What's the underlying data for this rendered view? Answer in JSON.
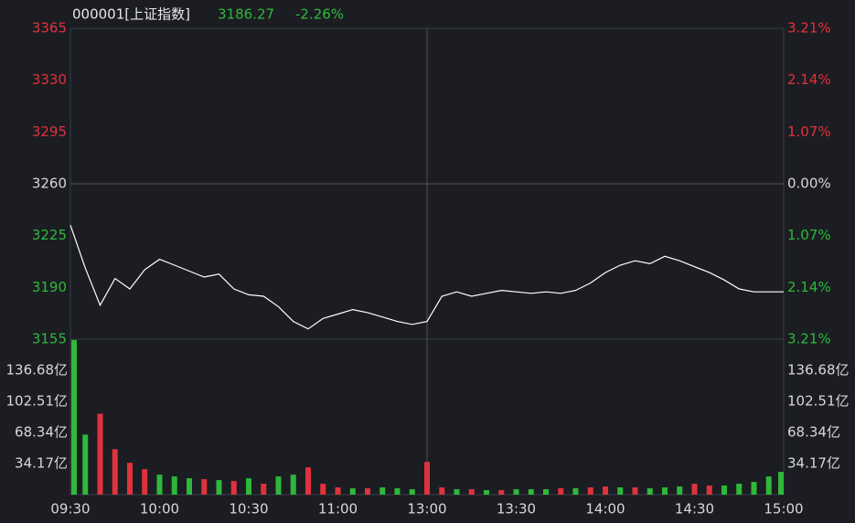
{
  "chart_data": [
    {
      "type": "line",
      "title": "000001[上证指数]",
      "last": 3186.27,
      "change": {
        "value": -2.26,
        "label": "-2.26%"
      },
      "color": "#ffffff",
      "x": [
        0,
        5,
        10,
        15,
        20,
        25,
        30,
        35,
        40,
        45,
        50,
        55,
        60,
        65,
        70,
        75,
        80,
        85,
        90,
        95,
        100,
        105,
        110,
        115,
        120,
        125,
        130,
        135,
        140,
        145,
        150,
        155,
        160,
        165,
        170,
        175,
        180,
        185,
        190,
        195,
        200,
        205,
        210,
        215,
        220,
        225,
        230,
        235,
        240
      ],
      "values": [
        3232,
        3203,
        3178,
        3196,
        3189,
        3202,
        3209,
        3205,
        3201,
        3197,
        3199,
        3189,
        3185,
        3184,
        3177,
        3167,
        3162,
        3169,
        3172,
        3175,
        3173,
        3170,
        3167,
        3165,
        3167,
        3184,
        3187,
        3184,
        3186,
        3188,
        3187,
        3186,
        3187,
        3186,
        3188,
        3193,
        3200,
        3205,
        3208,
        3206,
        3211,
        3208,
        3204,
        3200,
        3195,
        3189,
        3187,
        3187,
        3187
      ],
      "xlim": [
        0,
        240
      ],
      "ylim": [
        3155,
        3365
      ],
      "yticks": [
        3155,
        3190,
        3225,
        3260,
        3295,
        3330,
        3365
      ],
      "y2lim": [
        -3.21,
        3.21
      ],
      "y2ticks": [
        {
          "value": -3.21,
          "label": "3.21%"
        },
        {
          "value": -2.14,
          "label": "2.14%"
        },
        {
          "value": -1.07,
          "label": "1.07%"
        },
        {
          "value": 0,
          "label": "0.00%"
        },
        {
          "value": 1.07,
          "label": "1.07%"
        },
        {
          "value": 2.14,
          "label": "2.14%"
        },
        {
          "value": 3.21,
          "label": "3.21%"
        }
      ]
    },
    {
      "type": "bar",
      "x": [
        0,
        5,
        10,
        15,
        20,
        25,
        30,
        35,
        40,
        45,
        50,
        55,
        60,
        65,
        70,
        75,
        80,
        85,
        90,
        95,
        100,
        105,
        110,
        115,
        120,
        125,
        130,
        135,
        140,
        145,
        150,
        155,
        160,
        165,
        170,
        175,
        180,
        185,
        190,
        195,
        200,
        205,
        210,
        215,
        220,
        225,
        230,
        235,
        240
      ],
      "values": [
        170,
        66,
        89,
        50,
        35,
        28,
        22,
        20,
        18,
        17,
        16,
        15,
        18,
        12,
        20,
        22,
        30,
        12,
        8,
        7,
        7,
        8,
        7,
        6,
        36,
        8,
        6,
        6,
        5,
        5,
        6,
        6,
        6,
        7,
        7,
        8,
        9,
        8,
        8,
        7,
        8,
        9,
        12,
        10,
        10,
        12,
        14,
        20,
        25
      ],
      "colors": [
        "#2fb83b",
        "#2fb83b",
        "#e0323c",
        "#e0323c",
        "#e0323c",
        "#e0323c",
        "#2fb83b",
        "#2fb83b",
        "#2fb83b",
        "#e0323c",
        "#2fb83b",
        "#e0323c",
        "#2fb83b",
        "#e0323c",
        "#2fb83b",
        "#2fb83b",
        "#e0323c",
        "#e0323c",
        "#e0323c",
        "#2fb83b",
        "#e0323c",
        "#2fb83b",
        "#2fb83b",
        "#2fb83b",
        "#e0323c",
        "#e0323c",
        "#2fb83b",
        "#e0323c",
        "#2fb83b",
        "#e0323c",
        "#2fb83b",
        "#2fb83b",
        "#2fb83b",
        "#e0323c",
        "#2fb83b",
        "#e0323c",
        "#e0323c",
        "#2fb83b",
        "#e0323c",
        "#2fb83b",
        "#2fb83b",
        "#2fb83b",
        "#e0323c",
        "#e0323c",
        "#2fb83b",
        "#2fb83b",
        "#2fb83b",
        "#2fb83b",
        "#2fb83b"
      ],
      "xlim": [
        0,
        240
      ],
      "xticks": [
        {
          "value": 0,
          "label": "09:30"
        },
        {
          "value": 30,
          "label": "10:00"
        },
        {
          "value": 60,
          "label": "10:30"
        },
        {
          "value": 90,
          "label": "11:00"
        },
        {
          "value": 120,
          "label": "13:00"
        },
        {
          "value": 150,
          "label": "13:30"
        },
        {
          "value": 180,
          "label": "14:00"
        },
        {
          "value": 210,
          "label": "14:30"
        },
        {
          "value": 240,
          "label": "15:00"
        }
      ],
      "ylim": [
        0,
        170.85
      ],
      "yticks": [
        {
          "value": 34.17,
          "label": "34.17亿"
        },
        {
          "value": 68.34,
          "label": "68.34亿"
        },
        {
          "value": 102.51,
          "label": "102.51亿"
        },
        {
          "value": 136.68,
          "label": "136.68亿"
        }
      ]
    }
  ]
}
